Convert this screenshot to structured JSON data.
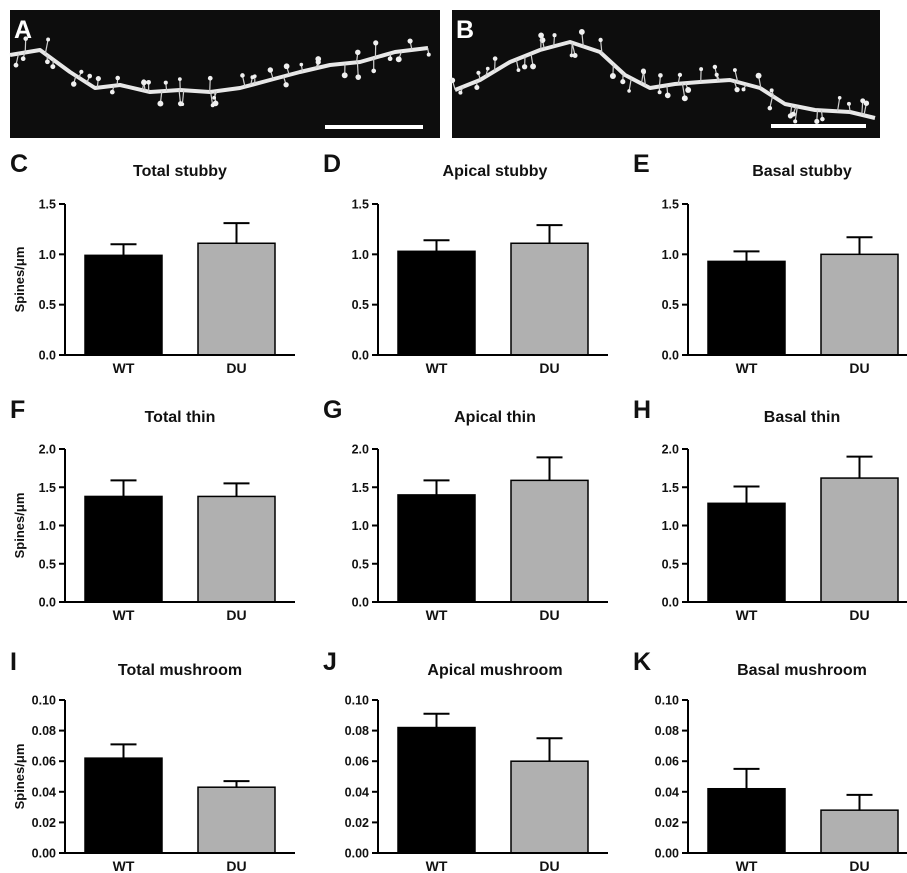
{
  "colors": {
    "WT": "#000000",
    "DU": "#b0b0b0",
    "micrograph_bg": "#0d0d0d",
    "dendrite": "#e8e8e8"
  },
  "images": [
    {
      "label": "A",
      "content": "micrograph of dendritic segment with spines (scale bar)"
    },
    {
      "label": "B",
      "content": "micrograph of dendritic segment with spines (scale bar)"
    }
  ],
  "chart_data": [
    {
      "label": "C",
      "type": "bar",
      "title": "Total stubby",
      "ylabel": "Spines/μm",
      "categories": [
        "WT",
        "DU"
      ],
      "values": [
        0.99,
        1.11
      ],
      "errors": [
        0.11,
        0.2
      ],
      "ylim": [
        0,
        1.5
      ],
      "yticks": [
        "0.0",
        "0.5",
        "1.0",
        "1.5"
      ]
    },
    {
      "label": "D",
      "type": "bar",
      "title": "Apical stubby",
      "ylabel": "",
      "categories": [
        "WT",
        "DU"
      ],
      "values": [
        1.03,
        1.11
      ],
      "errors": [
        0.11,
        0.18
      ],
      "ylim": [
        0,
        1.5
      ],
      "yticks": [
        "0.0",
        "0.5",
        "1.0",
        "1.5"
      ]
    },
    {
      "label": "E",
      "type": "bar",
      "title": "Basal stubby",
      "ylabel": "",
      "categories": [
        "WT",
        "DU"
      ],
      "values": [
        0.93,
        1.0
      ],
      "errors": [
        0.1,
        0.17
      ],
      "ylim": [
        0,
        1.5
      ],
      "yticks": [
        "0.0",
        "0.5",
        "1.0",
        "1.5"
      ]
    },
    {
      "label": "F",
      "type": "bar",
      "title": "Total thin",
      "ylabel": "Spines/μm",
      "categories": [
        "WT",
        "DU"
      ],
      "values": [
        1.38,
        1.38
      ],
      "errors": [
        0.21,
        0.17
      ],
      "ylim": [
        0,
        2.0
      ],
      "yticks": [
        "0.0",
        "0.5",
        "1.0",
        "1.5",
        "2.0"
      ]
    },
    {
      "label": "G",
      "type": "bar",
      "title": "Apical thin",
      "ylabel": "",
      "categories": [
        "WT",
        "DU"
      ],
      "values": [
        1.4,
        1.59
      ],
      "errors": [
        0.19,
        0.3
      ],
      "ylim": [
        0,
        2.0
      ],
      "yticks": [
        "0.0",
        "0.5",
        "1.0",
        "1.5",
        "2.0"
      ]
    },
    {
      "label": "H",
      "type": "bar",
      "title": "Basal thin",
      "ylabel": "",
      "categories": [
        "WT",
        "DU"
      ],
      "values": [
        1.29,
        1.62
      ],
      "errors": [
        0.22,
        0.28
      ],
      "ylim": [
        0,
        2.0
      ],
      "yticks": [
        "0.0",
        "0.5",
        "1.0",
        "1.5",
        "2.0"
      ]
    },
    {
      "label": "I",
      "type": "bar",
      "title": "Total mushroom",
      "ylabel": "Spines/μm",
      "categories": [
        "WT",
        "DU"
      ],
      "values": [
        0.062,
        0.043
      ],
      "errors": [
        0.009,
        0.004
      ],
      "ylim": [
        0,
        0.1
      ],
      "yticks": [
        "0.00",
        "0.02",
        "0.04",
        "0.06",
        "0.08",
        "0.10"
      ]
    },
    {
      "label": "J",
      "type": "bar",
      "title": "Apical mushroom",
      "ylabel": "",
      "categories": [
        "WT",
        "DU"
      ],
      "values": [
        0.082,
        0.06
      ],
      "errors": [
        0.009,
        0.015
      ],
      "ylim": [
        0,
        0.1
      ],
      "yticks": [
        "0.00",
        "0.02",
        "0.04",
        "0.06",
        "0.08",
        "0.10"
      ]
    },
    {
      "label": "K",
      "type": "bar",
      "title": "Basal mushroom",
      "ylabel": "",
      "categories": [
        "WT",
        "DU"
      ],
      "values": [
        0.042,
        0.028
      ],
      "errors": [
        0.013,
        0.01
      ],
      "ylim": [
        0,
        0.1
      ],
      "yticks": [
        "0.00",
        "0.02",
        "0.04",
        "0.06",
        "0.08",
        "0.10"
      ]
    }
  ]
}
